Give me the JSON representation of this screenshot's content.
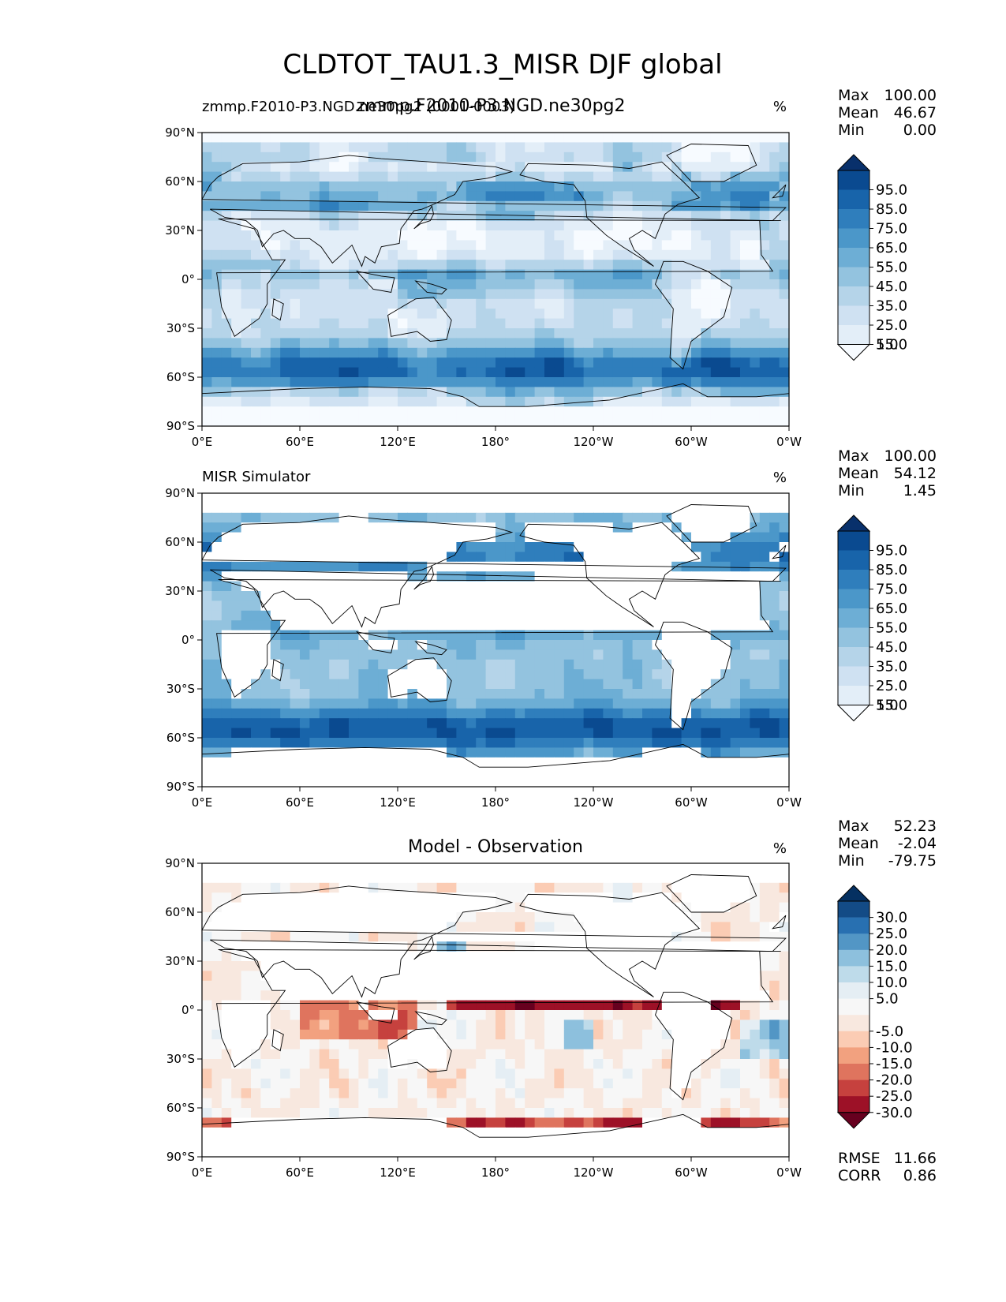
{
  "chart_data": {
    "type": "heatmap",
    "title": "CLDTOT_TAU1.3_MISR DJF global",
    "units": "%",
    "x_tick_labels": [
      "0°E",
      "60°E",
      "120°E",
      "180°",
      "120°W",
      "60°W",
      "0°W"
    ],
    "y_tick_labels": [
      "90°N",
      "60°N",
      "30°N",
      "0°",
      "30°S",
      "60°S",
      "90°S"
    ],
    "xlim": [
      0,
      360
    ],
    "ylim": [
      -90,
      90
    ],
    "panels": [
      {
        "id": "model",
        "left_title": "zmmp.F2010-P3.NGD.ne30pg2 (0001-0003)",
        "center_title": "zmmp.F2010-P3.NGD.ne30pg2",
        "units": "%",
        "stats": [
          {
            "label": "Max",
            "value": "100.00"
          },
          {
            "label": "Mean",
            "value": "46.67"
          },
          {
            "label": "Min",
            "value": "0.00"
          }
        ],
        "colorbar": {
          "cmap": "blues",
          "levels": [
            0,
            10,
            20,
            30,
            40,
            50,
            60,
            70,
            80,
            90,
            100
          ],
          "tick_labels": [
            "95.0",
            "85.0",
            "75.0",
            "65.0",
            "55.0",
            "45.0",
            "35.0",
            "25.0",
            "15.0",
            "5.0"
          ]
        }
      },
      {
        "id": "obs",
        "left_title": "MISR Simulator",
        "center_title": "",
        "units": "%",
        "land_masked": true,
        "stats": [
          {
            "label": "Max",
            "value": "100.00"
          },
          {
            "label": "Mean",
            "value": "54.12"
          },
          {
            "label": "Min",
            "value": "1.45"
          }
        ],
        "colorbar": {
          "cmap": "blues",
          "levels": [
            0,
            10,
            20,
            30,
            40,
            50,
            60,
            70,
            80,
            90,
            100
          ],
          "tick_labels": [
            "95.0",
            "85.0",
            "75.0",
            "65.0",
            "55.0",
            "45.0",
            "35.0",
            "25.0",
            "15.0",
            "5.0"
          ]
        }
      },
      {
        "id": "diff",
        "left_title": "",
        "center_title": "Model - Observation",
        "units": "%",
        "land_masked": true,
        "stats": [
          {
            "label": "Max",
            "value": "52.23"
          },
          {
            "label": "Mean",
            "value": "-2.04"
          },
          {
            "label": "Min",
            "value": "-79.75"
          }
        ],
        "extra_stats": [
          {
            "label": "RMSE",
            "value": "11.66"
          },
          {
            "label": "CORR",
            "value": "0.86"
          }
        ],
        "colorbar": {
          "cmap": "rdbu",
          "levels": [
            -35,
            -30,
            -25,
            -20,
            -15,
            -10,
            -5,
            0,
            5,
            10,
            15,
            20,
            25,
            30,
            35
          ],
          "tick_labels": [
            "30.0",
            "25.0",
            "20.0",
            "15.0",
            "10.0",
            "5.0",
            "-5.0",
            "-10.0",
            "-15.0",
            "-20.0",
            "-25.0",
            "-30.0"
          ]
        }
      }
    ]
  },
  "colors": {
    "blues": [
      "#f7fbff",
      "#e3eef8",
      "#cfe1f2",
      "#b5d4e9",
      "#93c3df",
      "#6daed5",
      "#4b97c9",
      "#2f7ebc",
      "#1864aa",
      "#0a4a90",
      "#08306b"
    ],
    "rdbu": [
      "#67001f",
      "#9d1127",
      "#c6413e",
      "#df745e",
      "#f2a17f",
      "#fbccb4",
      "#f8e8df",
      "#f7f7f7",
      "#e5eef4",
      "#bedbea",
      "#8dc0dd",
      "#5296c5",
      "#2870b1",
      "#134b86",
      "#053061"
    ],
    "coastline": "#000000",
    "frame": "#000000"
  }
}
